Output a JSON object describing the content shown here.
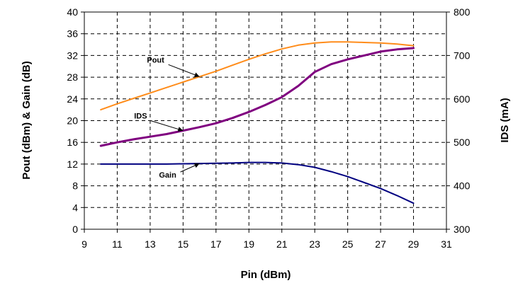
{
  "chart_data": {
    "type": "line",
    "xlabel": "Pin (dBm)",
    "ylabel_left": "Pout (dBm) & Gain (dB)",
    "ylabel_right": "IDS (mA)",
    "xlim": [
      9,
      31
    ],
    "ylim_left": [
      0,
      40
    ],
    "ylim_right": [
      300,
      800
    ],
    "x_ticks": [
      9,
      11,
      13,
      15,
      17,
      19,
      21,
      23,
      25,
      27,
      29,
      31
    ],
    "y_left_ticks": [
      0,
      4,
      8,
      12,
      16,
      20,
      24,
      28,
      32,
      36,
      40
    ],
    "y_right_ticks": [
      300,
      400,
      500,
      600,
      700,
      800
    ],
    "x_tick_labels": [
      "9",
      "11",
      "13",
      "15",
      "17",
      "19",
      "21",
      "23",
      "25",
      "27",
      "29",
      "31"
    ],
    "y_left_tick_labels": [
      "0",
      "4",
      "8",
      "12",
      "16",
      "20",
      "24",
      "28",
      "32",
      "36",
      "40"
    ],
    "y_right_tick_labels": [
      "300",
      "400",
      "500",
      "600",
      "700",
      "800"
    ],
    "grid": true,
    "series": [
      {
        "name": "Pout",
        "axis": "left",
        "color": "#ff8c1a",
        "x": [
          10,
          11,
          12,
          13,
          14,
          15,
          16,
          17,
          18,
          19,
          20,
          21,
          22,
          23,
          24,
          25,
          26,
          27,
          28,
          29
        ],
        "values": [
          22,
          23.1,
          24.1,
          25.1,
          26.1,
          27.1,
          28.1,
          29.1,
          30.2,
          31.3,
          32.3,
          33.2,
          33.9,
          34.3,
          34.5,
          34.5,
          34.4,
          34.3,
          34.1,
          33.8
        ]
      },
      {
        "name": "IDS",
        "axis": "right",
        "color": "#800080",
        "x": [
          10,
          11,
          12,
          13,
          14,
          15,
          16,
          17,
          18,
          19,
          20,
          21,
          22,
          23,
          24,
          25,
          26,
          27,
          28,
          29
        ],
        "values": [
          492,
          500,
          507,
          513,
          519,
          527,
          535,
          544,
          556,
          570,
          586,
          604,
          630,
          662,
          680,
          691,
          700,
          709,
          714,
          717
        ]
      },
      {
        "name": "Gain",
        "axis": "left",
        "color": "#000080",
        "x": [
          10,
          11,
          12,
          13,
          14,
          15,
          16,
          17,
          18,
          19,
          20,
          21,
          22,
          23,
          24,
          25,
          26,
          27,
          28,
          29
        ],
        "values": [
          12,
          12,
          12,
          12,
          12,
          12.05,
          12.1,
          12.15,
          12.2,
          12.3,
          12.3,
          12.2,
          11.9,
          11.4,
          10.6,
          9.7,
          8.6,
          7.5,
          6.2,
          4.8
        ]
      }
    ],
    "annotations": [
      {
        "text": "Pout",
        "series": "Pout",
        "point_x": 16
      },
      {
        "text": "IDS",
        "series": "IDS",
        "point_x": 15
      },
      {
        "text": "Gain",
        "series": "Gain",
        "point_x": 16
      }
    ]
  }
}
